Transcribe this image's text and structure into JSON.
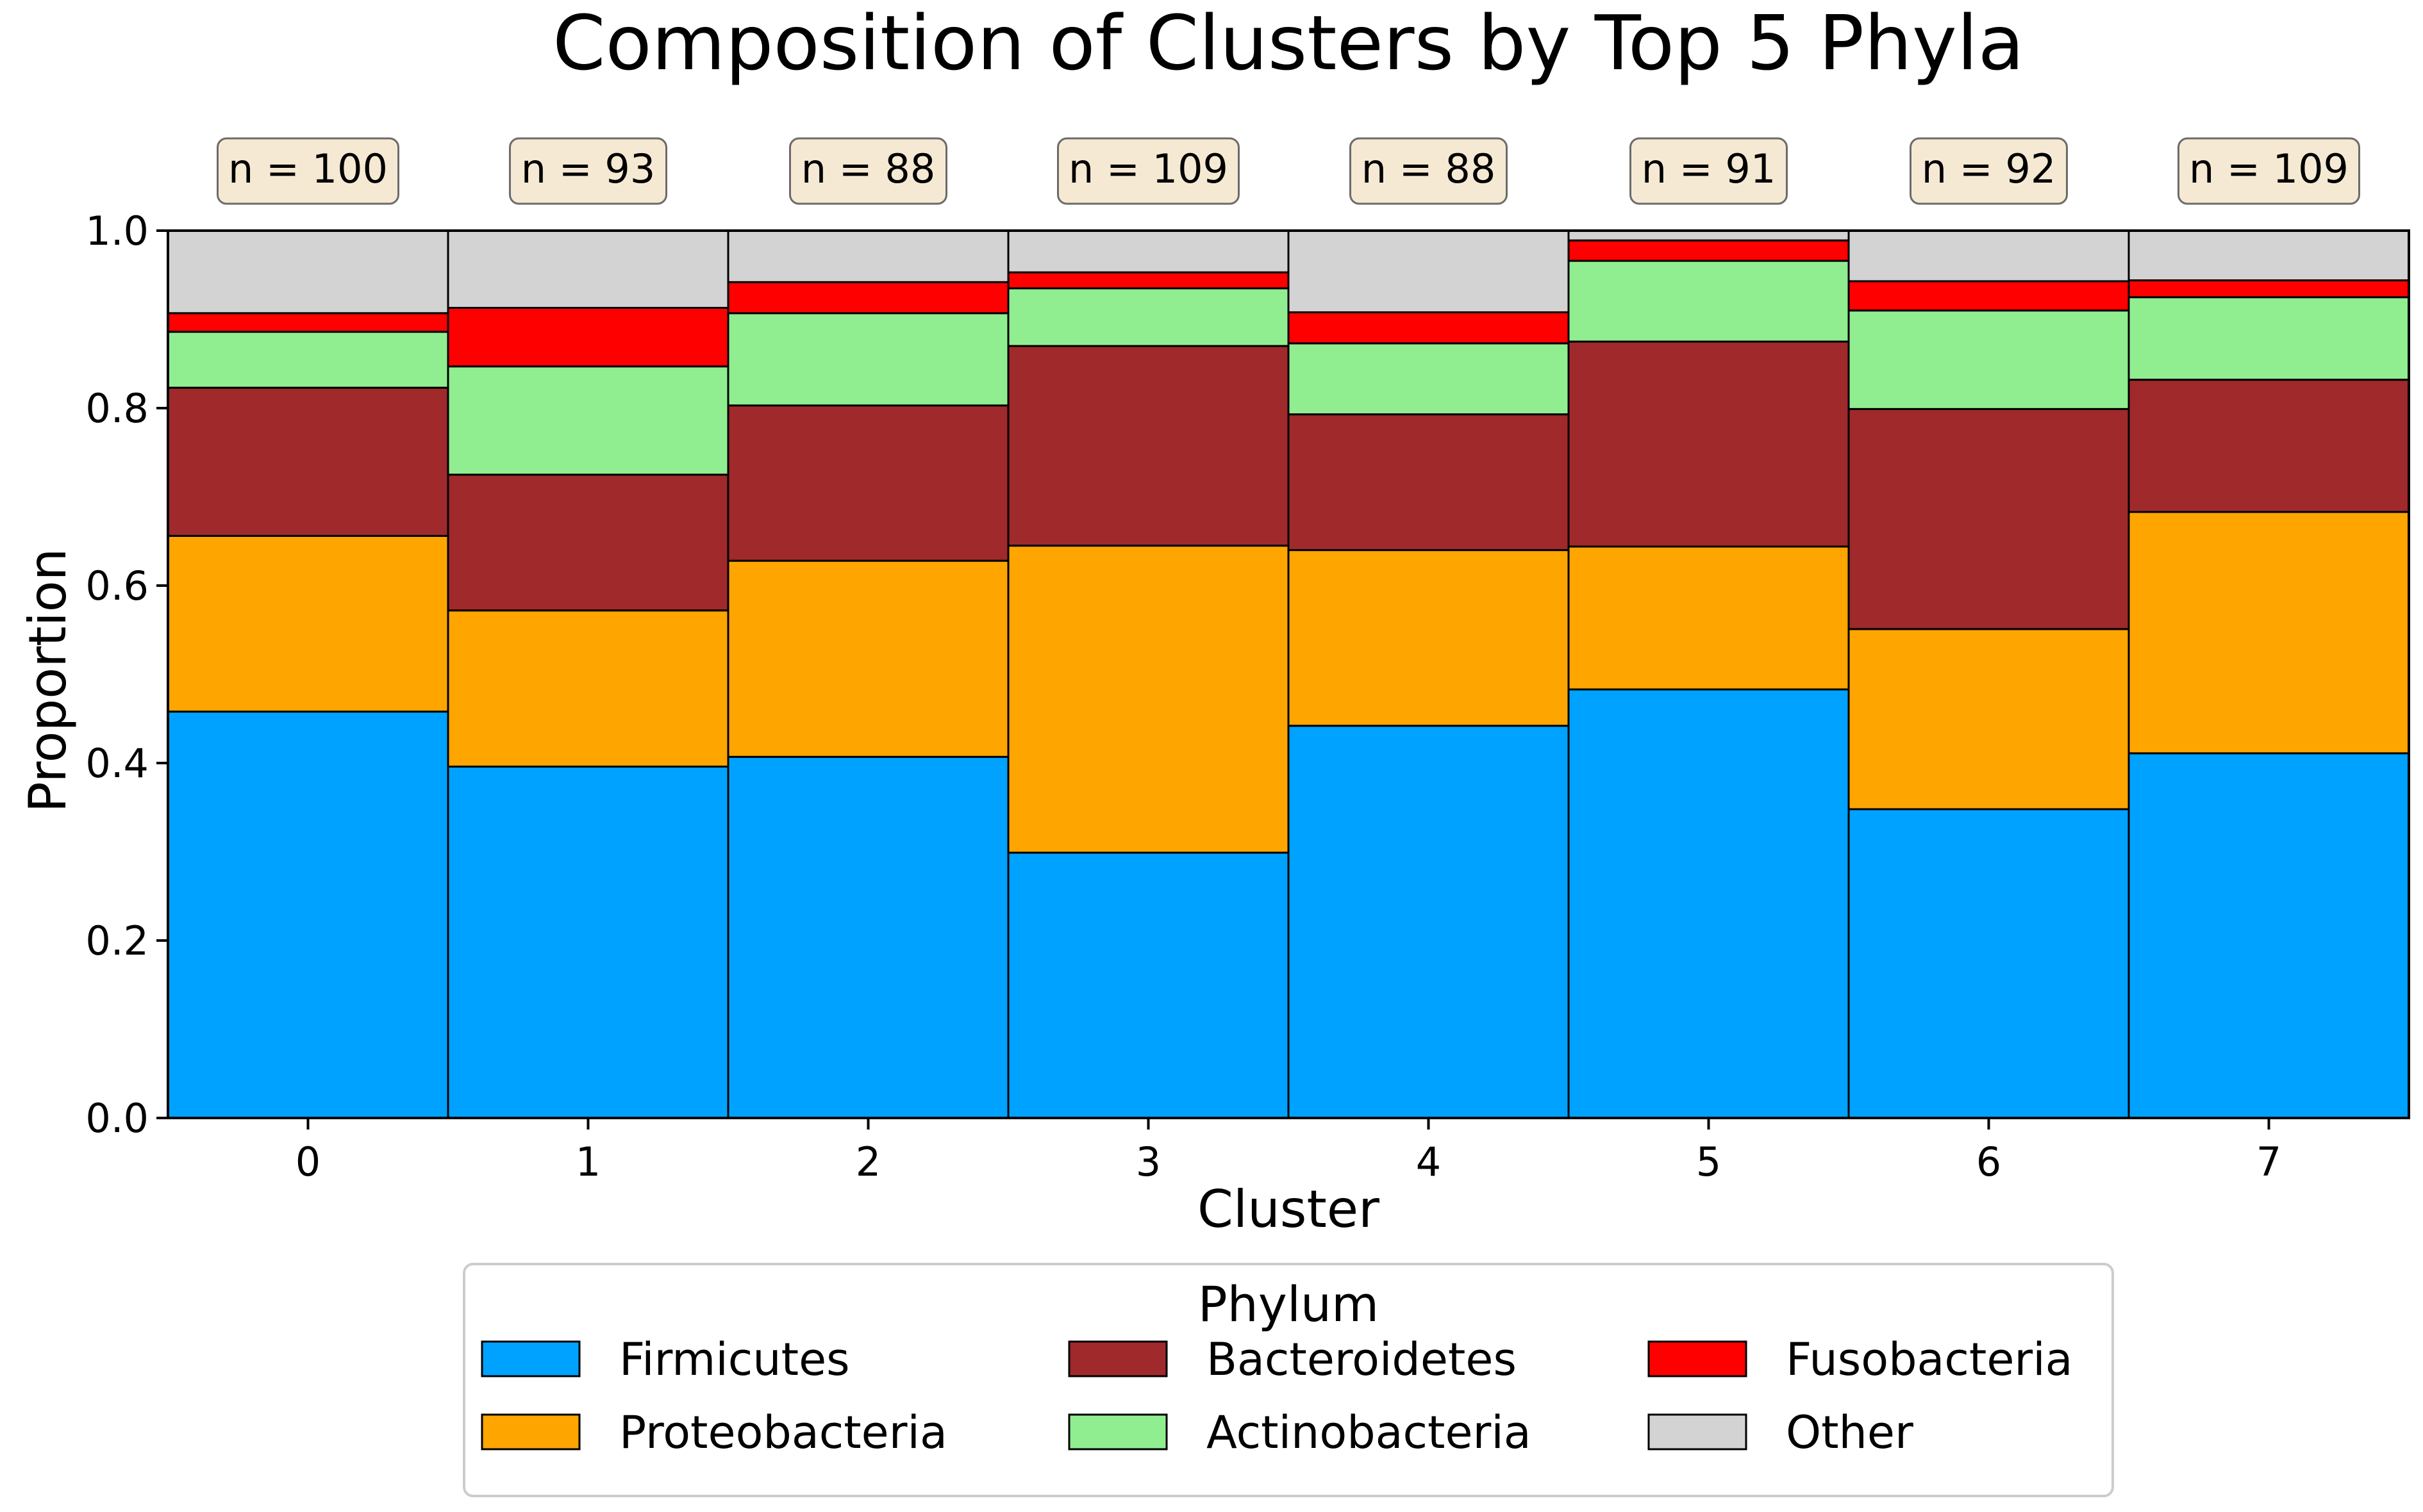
{
  "chart_data": {
    "type": "bar",
    "stacked": true,
    "title": "Composition of Clusters by Top 5 Phyla",
    "xlabel": "Cluster",
    "ylabel": "Proportion",
    "ylim": [
      0,
      1
    ],
    "yticks": [
      "0.0",
      "0.2",
      "0.4",
      "0.6",
      "0.8",
      "1.0"
    ],
    "categories": [
      "0",
      "1",
      "2",
      "3",
      "4",
      "5",
      "6",
      "7"
    ],
    "counts": [
      "n = 100",
      "n = 93",
      "n = 88",
      "n = 109",
      "n = 88",
      "n = 91",
      "n = 92",
      "n = 109"
    ],
    "grid": false,
    "legend": {
      "title": "Phylum",
      "placement": "bottom-center",
      "columns": 3
    },
    "series": [
      {
        "name": "Firmicutes",
        "color": "#00a2ff",
        "values": [
          0.458,
          0.396,
          0.407,
          0.299,
          0.442,
          0.483,
          0.348,
          0.411
        ]
      },
      {
        "name": "Proteobacteria",
        "color": "#ffa500",
        "values": [
          0.198,
          0.176,
          0.221,
          0.346,
          0.198,
          0.161,
          0.203,
          0.272
        ]
      },
      {
        "name": "Bacteroidetes",
        "color": "#a0292b",
        "values": [
          0.167,
          0.153,
          0.175,
          0.225,
          0.153,
          0.231,
          0.248,
          0.149
        ]
      },
      {
        "name": "Actinobacteria",
        "color": "#90ee90",
        "values": [
          0.063,
          0.122,
          0.104,
          0.065,
          0.08,
          0.091,
          0.111,
          0.093
        ]
      },
      {
        "name": "Fusobacteria",
        "color": "#ff0000",
        "values": [
          0.021,
          0.066,
          0.035,
          0.018,
          0.035,
          0.023,
          0.033,
          0.019
        ]
      },
      {
        "name": "Other",
        "color": "#d3d3d3",
        "values": [
          0.093,
          0.087,
          0.058,
          0.047,
          0.092,
          0.011,
          0.057,
          0.056
        ]
      }
    ]
  }
}
